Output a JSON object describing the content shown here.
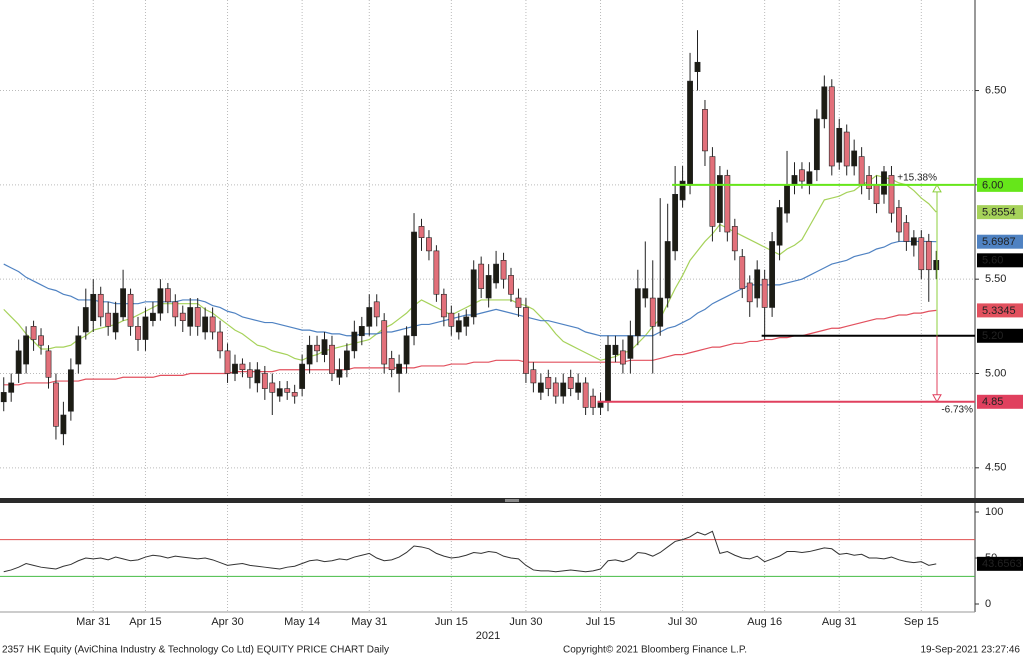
{
  "chart_data": {
    "type": "candlestick",
    "categories": [
      null,
      null,
      null,
      null,
      null,
      null,
      null,
      null,
      null,
      null,
      null,
      null,
      "Mar 31",
      null,
      null,
      null,
      null,
      null,
      null,
      "Apr 15",
      null,
      null,
      null,
      null,
      null,
      null,
      null,
      null,
      null,
      null,
      "Apr 30",
      null,
      null,
      null,
      null,
      null,
      null,
      null,
      null,
      null,
      "May 14",
      null,
      null,
      null,
      null,
      null,
      null,
      null,
      null,
      "May 31",
      null,
      null,
      null,
      null,
      null,
      null,
      null,
      null,
      null,
      null,
      "Jun 15",
      null,
      null,
      null,
      null,
      null,
      null,
      null,
      null,
      null,
      "Jun 30",
      null,
      null,
      null,
      null,
      null,
      null,
      null,
      null,
      null,
      "Jul 15",
      null,
      null,
      null,
      null,
      null,
      null,
      null,
      null,
      null,
      null,
      "Jul 30",
      null,
      null,
      null,
      null,
      null,
      null,
      null,
      null,
      null,
      null,
      "Aug 16",
      null,
      null,
      null,
      null,
      null,
      null,
      null,
      null,
      null,
      "Aug 31",
      null,
      null,
      null,
      null,
      null,
      null,
      null,
      null,
      null,
      null,
      "Sep 15",
      null,
      null
    ],
    "open": [
      4.85,
      4.9,
      5.0,
      5.05,
      5.25,
      5.2,
      5.12,
      4.95,
      4.68,
      4.8,
      5.05,
      5.22,
      5.28,
      5.42,
      5.32,
      5.22,
      5.3,
      5.42,
      5.25,
      5.18,
      5.28,
      5.32,
      5.45,
      5.38,
      5.32,
      5.25,
      5.35,
      5.22,
      5.3,
      5.22,
      5.12,
      5.0,
      5.05,
      5.02,
      4.95,
      5.0,
      4.95,
      4.88,
      4.92,
      4.9,
      4.92,
      5.05,
      5.15,
      5.1,
      5.15,
      4.98,
      5.02,
      5.12,
      5.2,
      5.25,
      5.38,
      5.28,
      5.08,
      5.0,
      5.05,
      5.2,
      5.78,
      5.72,
      5.65,
      5.42,
      5.32,
      5.22,
      5.25,
      5.3,
      5.58,
      5.4,
      5.48,
      5.6,
      5.52,
      5.4,
      5.35,
      5.02,
      4.9,
      4.98,
      4.95,
      4.88,
      4.98,
      4.9,
      4.95,
      4.88,
      4.82,
      4.85,
      5.1,
      5.12,
      5.08,
      5.2,
      5.4,
      5.4,
      5.25,
      5.4,
      5.65,
      5.92,
      6.0,
      6.6,
      6.4,
      6.15,
      5.8,
      6.05,
      5.78,
      5.62,
      5.48,
      5.4,
      5.5,
      5.35,
      5.68,
      5.85,
      6.0,
      6.08,
      6.0,
      6.08,
      6.35,
      6.52,
      6.12,
      6.28,
      6.1,
      6.15,
      6.05,
      6.0,
      5.95,
      6.05,
      5.88,
      5.8,
      5.68,
      5.72,
      5.7,
      5.55
    ],
    "high": [
      4.98,
      5.0,
      5.18,
      5.25,
      5.28,
      5.24,
      5.15,
      5.0,
      4.85,
      5.08,
      5.25,
      5.45,
      5.5,
      5.46,
      5.38,
      5.38,
      5.55,
      5.45,
      5.3,
      5.35,
      5.38,
      5.5,
      5.48,
      5.42,
      5.36,
      5.4,
      5.4,
      5.35,
      5.35,
      5.28,
      5.16,
      5.1,
      5.08,
      5.06,
      5.06,
      5.04,
      5.0,
      4.96,
      4.96,
      4.94,
      5.1,
      5.2,
      5.2,
      5.22,
      5.2,
      5.08,
      5.16,
      5.28,
      5.3,
      5.42,
      5.42,
      5.32,
      5.12,
      5.1,
      5.25,
      5.85,
      5.82,
      5.76,
      5.68,
      5.45,
      5.36,
      5.32,
      5.34,
      5.6,
      5.62,
      5.58,
      5.65,
      5.64,
      5.56,
      5.45,
      5.4,
      5.06,
      5.0,
      5.02,
      4.98,
      5.0,
      5.02,
      5.0,
      4.98,
      4.92,
      4.9,
      5.2,
      5.2,
      5.18,
      5.28,
      5.55,
      5.7,
      5.6,
      5.93,
      5.9,
      6.1,
      6.1,
      6.7,
      6.82,
      6.45,
      6.2,
      6.1,
      6.08,
      5.82,
      5.66,
      5.52,
      5.6,
      5.55,
      5.75,
      5.92,
      6.18,
      6.12,
      6.12,
      6.12,
      6.4,
      6.58,
      6.56,
      6.35,
      6.32,
      6.24,
      6.2,
      6.1,
      6.05,
      6.1,
      6.1,
      5.92,
      5.84,
      5.76,
      5.76,
      5.74,
      5.65
    ],
    "low": [
      4.8,
      4.85,
      4.95,
      5.0,
      5.12,
      5.1,
      4.92,
      4.65,
      4.62,
      4.75,
      5.0,
      5.18,
      5.22,
      5.25,
      5.2,
      5.18,
      5.28,
      5.2,
      5.12,
      5.12,
      5.25,
      5.28,
      5.32,
      5.25,
      5.22,
      5.2,
      5.2,
      5.18,
      5.18,
      5.08,
      4.95,
      4.96,
      4.98,
      4.92,
      4.9,
      4.86,
      4.78,
      4.85,
      4.86,
      4.84,
      4.88,
      5.0,
      5.06,
      5.06,
      4.96,
      4.94,
      4.98,
      5.08,
      5.15,
      5.2,
      5.25,
      5.0,
      4.98,
      4.9,
      5.0,
      5.15,
      5.65,
      5.6,
      5.38,
      5.25,
      5.2,
      5.18,
      5.2,
      5.26,
      5.4,
      5.35,
      5.45,
      5.45,
      5.38,
      5.3,
      4.95,
      4.9,
      4.86,
      4.88,
      4.84,
      4.84,
      4.88,
      4.86,
      4.78,
      4.78,
      4.78,
      4.8,
      5.06,
      5.0,
      5.0,
      5.15,
      5.35,
      5.0,
      5.2,
      5.35,
      5.6,
      5.88,
      5.95,
      6.5,
      6.1,
      5.7,
      5.75,
      5.7,
      5.6,
      5.4,
      5.3,
      5.35,
      5.18,
      5.3,
      5.6,
      5.8,
      5.95,
      5.98,
      5.95,
      6.02,
      6.3,
      6.05,
      6.08,
      6.05,
      6.05,
      5.95,
      5.92,
      5.85,
      5.9,
      5.8,
      5.7,
      5.65,
      5.62,
      5.5,
      5.38,
      5.5
    ],
    "close": [
      4.9,
      4.95,
      5.12,
      5.2,
      5.18,
      5.15,
      4.98,
      4.72,
      4.78,
      5.02,
      5.2,
      5.35,
      5.42,
      5.3,
      5.25,
      5.32,
      5.45,
      5.25,
      5.18,
      5.3,
      5.32,
      5.45,
      5.38,
      5.3,
      5.28,
      5.35,
      5.25,
      5.3,
      5.22,
      5.12,
      5.0,
      5.05,
      5.02,
      4.98,
      5.02,
      4.92,
      4.9,
      4.92,
      4.9,
      4.88,
      5.05,
      5.15,
      5.12,
      5.18,
      5.0,
      5.02,
      5.12,
      5.22,
      5.25,
      5.35,
      5.3,
      5.05,
      5.02,
      5.05,
      5.2,
      5.75,
      5.72,
      5.65,
      5.42,
      5.3,
      5.25,
      5.28,
      5.3,
      5.55,
      5.45,
      5.52,
      5.58,
      5.5,
      5.42,
      5.35,
      5.0,
      4.95,
      4.95,
      4.92,
      4.88,
      4.95,
      4.92,
      4.95,
      4.82,
      4.82,
      4.85,
      5.15,
      5.15,
      5.05,
      5.2,
      5.45,
      5.45,
      5.25,
      5.4,
      5.7,
      5.95,
      6.02,
      6.55,
      6.65,
      6.18,
      5.78,
      6.05,
      5.75,
      5.65,
      5.45,
      5.38,
      5.55,
      5.35,
      5.7,
      5.88,
      6.0,
      6.05,
      6.02,
      6.07,
      6.35,
      6.52,
      6.1,
      6.3,
      6.1,
      6.18,
      6.0,
      5.98,
      5.9,
      6.07,
      5.85,
      5.75,
      5.7,
      5.72,
      5.55,
      5.55,
      5.6
    ],
    "up_color": "#1c1c14",
    "down_color": "#e2707a",
    "last_label": "5.60",
    "overlays": [
      {
        "color": "#a6d25a",
        "text_color": "#000000",
        "values": [
          5.34,
          5.3,
          5.26,
          5.21,
          5.17,
          5.13,
          5.13,
          5.14,
          5.14,
          5.15,
          5.18,
          5.2,
          5.23,
          5.24,
          5.25,
          5.26,
          5.28,
          5.29,
          5.31,
          5.33,
          5.35,
          5.37,
          5.37,
          5.37,
          5.37,
          5.37,
          5.37,
          5.34,
          5.32,
          5.29,
          5.26,
          5.23,
          5.21,
          5.18,
          5.15,
          5.14,
          5.12,
          5.11,
          5.1,
          5.08,
          5.07,
          5.09,
          5.1,
          5.12,
          5.13,
          5.14,
          5.15,
          5.16,
          5.17,
          5.18,
          5.21,
          5.24,
          5.26,
          5.29,
          5.32,
          5.36,
          5.39,
          5.37,
          5.35,
          5.33,
          5.31,
          5.33,
          5.35,
          5.37,
          5.39,
          5.39,
          5.39,
          5.39,
          5.39,
          5.37,
          5.36,
          5.34,
          5.3,
          5.26,
          5.21,
          5.17,
          5.15,
          5.13,
          5.11,
          5.09,
          5.07,
          5.08,
          5.09,
          5.11,
          5.12,
          5.16,
          5.2,
          5.25,
          5.29,
          5.37,
          5.45,
          5.52,
          5.6,
          5.65,
          5.7,
          5.74,
          5.79,
          5.77,
          5.75,
          5.73,
          5.71,
          5.69,
          5.67,
          5.65,
          5.63,
          5.66,
          5.68,
          5.71,
          5.78,
          5.85,
          5.92,
          5.93,
          5.94,
          5.96,
          5.97,
          6.0,
          6.02,
          6.05,
          6.04,
          6.03,
          6.01,
          6.0,
          5.97,
          5.93,
          5.9,
          5.8554
        ]
      },
      {
        "color": "#4f82c2",
        "text_color": "#ffffff",
        "values": [
          5.58,
          5.56,
          5.54,
          5.51,
          5.49,
          5.47,
          5.45,
          5.44,
          5.42,
          5.41,
          5.39,
          5.39,
          5.39,
          5.38,
          5.38,
          5.37,
          5.37,
          5.37,
          5.37,
          5.38,
          5.38,
          5.38,
          5.38,
          5.38,
          5.39,
          5.39,
          5.39,
          5.38,
          5.36,
          5.35,
          5.33,
          5.32,
          5.3,
          5.29,
          5.28,
          5.27,
          5.27,
          5.26,
          5.25,
          5.24,
          5.23,
          5.23,
          5.22,
          5.22,
          5.21,
          5.21,
          5.2,
          5.2,
          5.21,
          5.21,
          5.21,
          5.22,
          5.22,
          5.23,
          5.24,
          5.25,
          5.26,
          5.26,
          5.27,
          5.28,
          5.29,
          5.3,
          5.31,
          5.31,
          5.32,
          5.33,
          5.34,
          5.33,
          5.32,
          5.31,
          5.3,
          5.29,
          5.28,
          5.28,
          5.27,
          5.26,
          5.25,
          5.24,
          5.22,
          5.21,
          5.2,
          5.2,
          5.2,
          5.2,
          5.2,
          5.2,
          5.2,
          5.2,
          5.22,
          5.24,
          5.25,
          5.27,
          5.29,
          5.32,
          5.34,
          5.37,
          5.39,
          5.41,
          5.43,
          5.45,
          5.47,
          5.47,
          5.47,
          5.47,
          5.47,
          5.48,
          5.49,
          5.5,
          5.52,
          5.54,
          5.56,
          5.58,
          5.59,
          5.6,
          5.62,
          5.63,
          5.64,
          5.66,
          5.67,
          5.69,
          5.7,
          5.7,
          5.7,
          5.7,
          5.7,
          5.6987
        ]
      },
      {
        "color": "#e2505e",
        "text_color": "#ffffff",
        "values": [
          4.94,
          4.94,
          4.94,
          4.95,
          4.95,
          4.95,
          4.95,
          4.96,
          4.96,
          4.96,
          4.96,
          4.97,
          4.97,
          4.97,
          4.97,
          4.97,
          4.98,
          4.98,
          4.98,
          4.98,
          4.98,
          4.99,
          4.99,
          4.99,
          4.99,
          5.0,
          5.0,
          5.0,
          5.0,
          5.0,
          5.0,
          5.01,
          5.01,
          5.01,
          5.01,
          5.01,
          5.01,
          5.02,
          5.02,
          5.02,
          5.02,
          5.02,
          5.02,
          5.02,
          5.02,
          5.02,
          5.02,
          5.03,
          5.03,
          5.03,
          5.03,
          5.03,
          5.03,
          5.03,
          5.03,
          5.03,
          5.04,
          5.04,
          5.04,
          5.04,
          5.05,
          5.05,
          5.05,
          5.06,
          5.06,
          5.06,
          5.07,
          5.07,
          5.07,
          5.07,
          5.06,
          5.06,
          5.06,
          5.06,
          5.06,
          5.06,
          5.06,
          5.06,
          5.06,
          5.06,
          5.06,
          5.06,
          5.06,
          5.06,
          5.07,
          5.07,
          5.07,
          5.07,
          5.08,
          5.09,
          5.1,
          5.1,
          5.11,
          5.12,
          5.13,
          5.14,
          5.14,
          5.15,
          5.16,
          5.16,
          5.17,
          5.17,
          5.18,
          5.18,
          5.19,
          5.19,
          5.2,
          5.2,
          5.21,
          5.22,
          5.23,
          5.24,
          5.24,
          5.25,
          5.26,
          5.27,
          5.28,
          5.29,
          5.29,
          5.3,
          5.31,
          5.31,
          5.32,
          5.32,
          5.33,
          5.3345
        ]
      }
    ],
    "levels": [
      {
        "value": 6,
        "label": "6.00",
        "color": "#66e61a",
        "text_color": "#000000"
      },
      {
        "value": 5.2,
        "label": "5.20",
        "color": "#000000",
        "text_color": "#ffffff"
      },
      {
        "value": 4.85,
        "label": "4.85",
        "color": "#e0405e",
        "text_color": "#ffffff"
      }
    ],
    "changes": [
      {
        "label": "+15.38%",
        "color": "#8ccf3c"
      },
      {
        "label": "-6.73%",
        "color": "#e0405e"
      }
    ],
    "ylim": [
      4.34,
      6.98
    ],
    "yticks": [
      {
        "value": 4.5,
        "label": "4.50"
      },
      {
        "value": 5,
        "label": "5.00"
      },
      {
        "value": 5.5,
        "label": "5.50"
      },
      {
        "value": 6,
        "label": "6.00"
      },
      {
        "value": 6.5,
        "label": "6.50"
      }
    ],
    "grid": true,
    "year_label": "2021",
    "rsi": {
      "color": "#333333",
      "values": [
        35,
        37,
        40,
        44,
        42,
        40,
        39,
        38,
        41,
        43,
        47,
        50,
        49,
        50,
        48,
        51,
        49,
        47,
        48,
        51,
        53,
        52,
        50,
        52,
        51,
        50,
        49,
        50,
        48,
        45,
        42,
        43,
        44,
        42,
        41,
        40,
        39,
        38,
        40,
        41,
        44,
        47,
        48,
        46,
        47,
        49,
        48,
        51,
        53,
        55,
        50,
        47,
        48,
        51,
        56,
        63,
        62,
        60,
        55,
        52,
        50,
        51,
        53,
        56,
        55,
        57,
        56,
        52,
        50,
        49,
        42,
        37,
        36,
        36,
        35,
        36,
        37,
        36,
        35,
        36,
        38,
        47,
        48,
        46,
        49,
        56,
        55,
        52,
        56,
        62,
        68,
        70,
        73,
        78,
        75,
        79,
        55,
        57,
        53,
        50,
        49,
        52,
        46,
        49,
        52,
        57,
        57,
        56,
        57,
        59,
        61,
        60,
        54,
        55,
        53,
        54,
        50,
        50,
        49,
        51,
        48,
        46,
        45,
        46,
        42,
        43.6563
      ],
      "ylim": [
        -8.7,
        107.6
      ],
      "yticks": [
        0,
        50,
        100
      ],
      "levels": [
        {
          "value": 70,
          "color": "#e05050"
        },
        {
          "value": 30,
          "color": "#44bb44"
        }
      ]
    }
  },
  "footer": {
    "left": "2357 HK Equity (AviChina Industry & Technology Co Ltd) EQUITY PRICE CHART  Daily",
    "center": "Copyright© 2021 Bloomberg Finance L.P.",
    "right": "19-Sep-2021 23:27:46"
  }
}
